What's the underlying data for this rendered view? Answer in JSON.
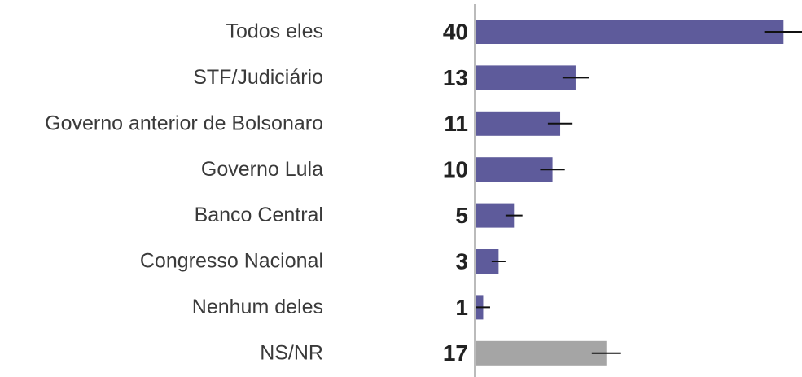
{
  "chart_data": {
    "type": "bar",
    "categories": [
      "Todos eles",
      "STF/Judiciário",
      "Governo anterior de Bolsonaro",
      "Governo Lula",
      "Banco Central",
      "Congresso Nacional",
      "Nenhum deles",
      "NS/NR"
    ],
    "values": [
      40,
      13,
      11,
      10,
      5,
      3,
      1,
      17
    ],
    "errors": [
      2.5,
      1.7,
      1.6,
      1.6,
      1.1,
      0.9,
      0.9,
      1.9
    ],
    "colors": [
      "#5e5b9b",
      "#5e5b9b",
      "#5e5b9b",
      "#5e5b9b",
      "#5e5b9b",
      "#5e5b9b",
      "#5e5b9b",
      "#a5a5a5"
    ],
    "xlim": [
      0,
      42.4
    ]
  }
}
